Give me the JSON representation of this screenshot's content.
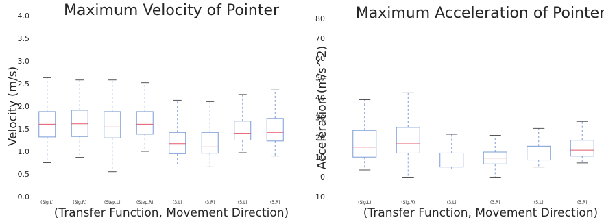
{
  "chart_data": [
    {
      "type": "box",
      "title": "Maximum Velocity of Pointer",
      "xlabel": "(Transfer Function, Movement Direction)",
      "ylabel": "Velocity (m/s)",
      "ylim": [
        0.0,
        4.0
      ],
      "yticks": [
        "0.0",
        "0.5",
        "1.0",
        "1.5",
        "2.0",
        "2.5",
        "3.0",
        "3.5",
        "4.0"
      ],
      "grid": false,
      "categories": [
        "(Sig,L)",
        "(Sig,R)",
        "(Step,L)",
        "(Step,R)",
        "(3,L)",
        "(3,R)",
        "(5,L)",
        "(5,R)"
      ],
      "boxes": [
        {
          "min": 0.75,
          "q1": 1.32,
          "median": 1.6,
          "q3": 1.88,
          "max": 2.63
        },
        {
          "min": 0.87,
          "q1": 1.33,
          "median": 1.61,
          "q3": 1.91,
          "max": 2.58
        },
        {
          "min": 0.55,
          "q1": 1.3,
          "median": 1.54,
          "q3": 1.88,
          "max": 2.58
        },
        {
          "min": 1.0,
          "q1": 1.38,
          "median": 1.6,
          "q3": 1.88,
          "max": 2.52
        },
        {
          "min": 0.72,
          "q1": 0.95,
          "median": 1.17,
          "q3": 1.42,
          "max": 2.13
        },
        {
          "min": 0.66,
          "q1": 0.96,
          "median": 1.1,
          "q3": 1.42,
          "max": 2.1
        },
        {
          "min": 0.97,
          "q1": 1.25,
          "median": 1.4,
          "q3": 1.67,
          "max": 2.26
        },
        {
          "min": 0.9,
          "q1": 1.23,
          "median": 1.42,
          "q3": 1.73,
          "max": 2.36
        }
      ]
    },
    {
      "type": "box",
      "title": "Maximum Acceleration of Pointer",
      "xlabel": "(Transfer Function, Movement Direction)",
      "ylabel": "Acceleration (m/s^2)",
      "ylim": [
        -10,
        80
      ],
      "yticks": [
        "−10",
        "0",
        "10",
        "20",
        "30",
        "40",
        "50",
        "60",
        "70",
        "80"
      ],
      "grid": false,
      "categories": [
        "(Sig,L)",
        "(Sig,R)",
        "(3,L)",
        "(3,R)",
        "(5,L)",
        "(5,R)"
      ],
      "boxes": [
        {
          "min": 3.5,
          "q1": 10.0,
          "median": 15.0,
          "q3": 23.5,
          "max": 39.0
        },
        {
          "min": -0.5,
          "q1": 12.0,
          "median": 17.0,
          "q3": 25.0,
          "max": 42.5
        },
        {
          "min": 3.0,
          "q1": 5.0,
          "median": 7.5,
          "q3": 12.0,
          "max": 21.5
        },
        {
          "min": -0.5,
          "q1": 6.5,
          "median": 9.5,
          "q3": 12.5,
          "max": 21.0
        },
        {
          "min": 5.0,
          "q1": 8.5,
          "median": 12.0,
          "q3": 15.5,
          "max": 24.5
        },
        {
          "min": 7.0,
          "q1": 10.5,
          "median": 13.5,
          "q3": 18.5,
          "max": 28.0
        }
      ]
    }
  ]
}
